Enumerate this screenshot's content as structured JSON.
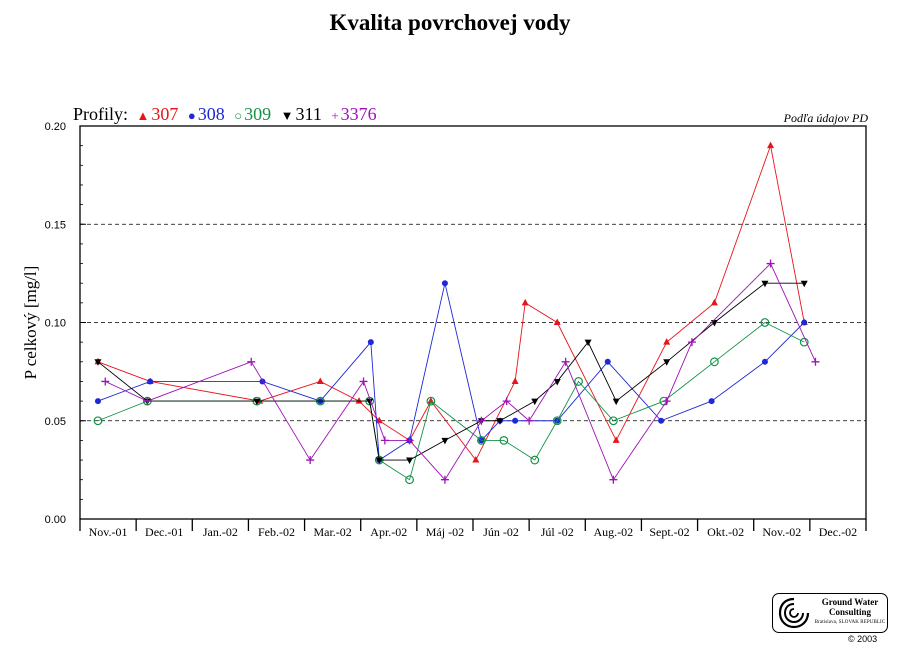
{
  "title": "Kvalita povrchovej vody",
  "legend": {
    "label": "Profily:",
    "items": [
      {
        "name": "307",
        "color": "#e8141c",
        "symbol": "▲"
      },
      {
        "name": "308",
        "color": "#1e28d6",
        "symbol": "●"
      },
      {
        "name": "309",
        "color": "#139246",
        "symbol": "○"
      },
      {
        "name": "311",
        "color": "#000000",
        "symbol": "▼"
      },
      {
        "name": "3376",
        "color": "#a012b8",
        "symbol": "+"
      }
    ]
  },
  "source_note": "Podľa údajov PD",
  "logo": {
    "name_line1": "Ground Water",
    "name_line2": "Consulting",
    "place": "Bratislava, SLOVAK REPUBLIC"
  },
  "copyright": "© 2003",
  "chart_data": {
    "type": "line",
    "title": "Kvalita povrchovej vody",
    "xlabel": "",
    "ylabel": "P celkový [mg/l]",
    "ylim": [
      0,
      0.2
    ],
    "yticks": [
      "0.00",
      "0.05",
      "0.10",
      "0.15",
      "0.20"
    ],
    "ytick_values": [
      0,
      0.05,
      0.1,
      0.15,
      0.2
    ],
    "grid": "horizontal dashed",
    "categories": [
      "Nov.-01",
      "Dec.-01",
      "Jan.-02",
      "Feb.-02",
      "Mar.-02",
      "Apr.-02",
      "Máj -02",
      "Jún -02",
      "Júl -02",
      "Aug.-02",
      "Sept.-02",
      "Okt.-02",
      "Nov.-02",
      "Dec.-02"
    ],
    "series": [
      {
        "name": "307",
        "color": "#e8141c",
        "marker": "triangle-up",
        "points": [
          [
            0.32,
            0.08
          ],
          [
            1.25,
            0.07
          ],
          [
            3.2,
            0.06
          ],
          [
            4.28,
            0.07
          ],
          [
            4.97,
            0.06
          ],
          [
            5.33,
            0.05
          ],
          [
            5.87,
            0.04
          ],
          [
            6.25,
            0.06
          ],
          [
            7.05,
            0.03
          ],
          [
            7.75,
            0.07
          ],
          [
            7.93,
            0.11
          ],
          [
            8.5,
            0.1
          ],
          [
            9.55,
            0.04
          ],
          [
            10.45,
            0.09
          ],
          [
            11.3,
            0.11
          ],
          [
            12.3,
            0.19
          ],
          [
            12.9,
            0.1
          ]
        ]
      },
      {
        "name": "308",
        "color": "#1e28d6",
        "marker": "circle-filled",
        "points": [
          [
            0.32,
            0.06
          ],
          [
            1.25,
            0.07
          ],
          [
            3.25,
            0.07
          ],
          [
            4.28,
            0.06
          ],
          [
            5.18,
            0.09
          ],
          [
            5.33,
            0.03
          ],
          [
            5.87,
            0.04
          ],
          [
            6.5,
            0.12
          ],
          [
            7.15,
            0.04
          ],
          [
            7.48,
            0.05
          ],
          [
            7.75,
            0.05
          ],
          [
            8.5,
            0.05
          ],
          [
            9.4,
            0.08
          ],
          [
            10.35,
            0.05
          ],
          [
            11.25,
            0.06
          ],
          [
            12.2,
            0.08
          ],
          [
            12.9,
            0.1
          ]
        ]
      },
      {
        "name": "309",
        "color": "#139246",
        "marker": "circle-open",
        "points": [
          [
            0.32,
            0.05
          ],
          [
            1.2,
            0.06
          ],
          [
            3.15,
            0.06
          ],
          [
            4.28,
            0.06
          ],
          [
            5.16,
            0.06
          ],
          [
            5.33,
            0.03
          ],
          [
            5.87,
            0.02
          ],
          [
            6.25,
            0.06
          ],
          [
            7.15,
            0.04
          ],
          [
            7.55,
            0.04
          ],
          [
            8.1,
            0.03
          ],
          [
            8.5,
            0.05
          ],
          [
            8.88,
            0.07
          ],
          [
            9.5,
            0.05
          ],
          [
            10.4,
            0.06
          ],
          [
            11.3,
            0.08
          ],
          [
            12.2,
            0.1
          ],
          [
            12.9,
            0.09
          ]
        ]
      },
      {
        "name": "311",
        "color": "#000000",
        "marker": "triangle-down",
        "points": [
          [
            0.32,
            0.08
          ],
          [
            1.2,
            0.06
          ],
          [
            3.15,
            0.06
          ],
          [
            5.16,
            0.06
          ],
          [
            5.33,
            0.03
          ],
          [
            5.87,
            0.03
          ],
          [
            6.5,
            0.04
          ],
          [
            7.15,
            0.05
          ],
          [
            7.48,
            0.05
          ],
          [
            8.1,
            0.06
          ],
          [
            8.5,
            0.07
          ],
          [
            9.05,
            0.09
          ],
          [
            9.55,
            0.06
          ],
          [
            10.45,
            0.08
          ],
          [
            11.3,
            0.1
          ],
          [
            12.2,
            0.12
          ],
          [
            12.9,
            0.12
          ]
        ]
      },
      {
        "name": "3376",
        "color": "#a012b8",
        "marker": "plus",
        "points": [
          [
            0.45,
            0.07
          ],
          [
            1.2,
            0.06
          ],
          [
            3.05,
            0.08
          ],
          [
            4.1,
            0.03
          ],
          [
            5.05,
            0.07
          ],
          [
            5.43,
            0.04
          ],
          [
            5.87,
            0.04
          ],
          [
            6.5,
            0.02
          ],
          [
            7.15,
            0.05
          ],
          [
            7.6,
            0.06
          ],
          [
            8.0,
            0.05
          ],
          [
            8.65,
            0.08
          ],
          [
            9.5,
            0.02
          ],
          [
            10.45,
            0.06
          ],
          [
            10.9,
            0.09
          ],
          [
            12.3,
            0.13
          ],
          [
            13.1,
            0.08
          ]
        ]
      }
    ]
  }
}
